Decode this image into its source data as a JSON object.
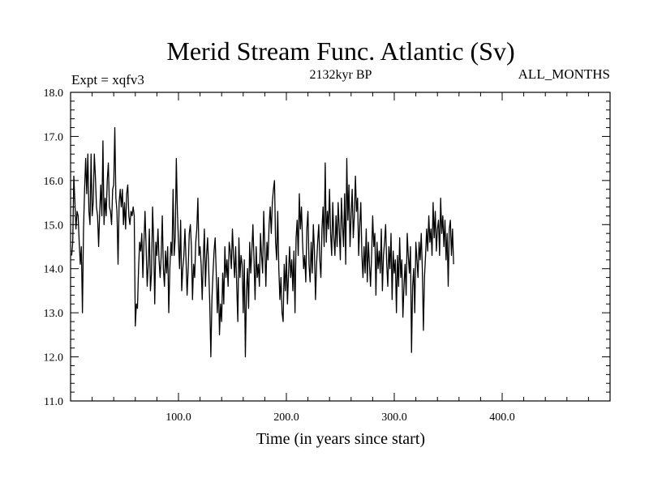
{
  "chart_data": {
    "type": "line",
    "title": "Merid Stream Func. Atlantic (Sv)",
    "subtitle_left": "Expt = xqfv3",
    "subtitle_center": "2132kyr BP",
    "subtitle_right": "ALL_MONTHS",
    "xlabel": "Time (in years since start)",
    "ylabel": "",
    "xlim": [
      0,
      500
    ],
    "ylim": [
      11.0,
      18.0
    ],
    "x_ticks": [
      100,
      200,
      300,
      400
    ],
    "x_tick_labels": [
      "100.0",
      "200.0",
      "300.0",
      "400.0"
    ],
    "y_ticks": [
      11,
      12,
      13,
      14,
      15,
      16,
      17,
      18
    ],
    "y_tick_labels": [
      "11.0",
      "12.0",
      "13.0",
      "14.0",
      "15.0",
      "16.0",
      "17.0",
      "18.0"
    ],
    "grid": false,
    "line_color": "#000000",
    "series": [
      {
        "name": "Merid Stream Func. Atlantic",
        "x_start": 1,
        "x_step": 1,
        "values": [
          14.3,
          14.6,
          16.1,
          15.5,
          14.9,
          15.3,
          15.2,
          14.6,
          14.1,
          14.5,
          13.0,
          14.9,
          15.8,
          16.5,
          15.7,
          16.6,
          15.3,
          15.0,
          16.6,
          15.2,
          15.5,
          16.6,
          16.1,
          15.4,
          15.2,
          14.5,
          15.3,
          15.9,
          15.2,
          16.9,
          15.0,
          15.6,
          15.2,
          16.0,
          16.4,
          15.4,
          15.3,
          15.0,
          15.8,
          15.9,
          17.2,
          15.6,
          15.3,
          14.1,
          15.5,
          15.8,
          15.4,
          15.8,
          15.0,
          15.5,
          14.9,
          15.7,
          15.9,
          15.2,
          15.0,
          15.3,
          15.2,
          15.4,
          15.2,
          12.7,
          13.2,
          13.1,
          14.0,
          14.6,
          14.4,
          14.8,
          13.8,
          14.6,
          15.3,
          14.5,
          13.6,
          14.1,
          14.9,
          13.5,
          13.9,
          15.4,
          14.6,
          13.2,
          14.6,
          14.3,
          14.9,
          14.2,
          13.8,
          14.3,
          15.2,
          14.0,
          13.6,
          14.4,
          13.9,
          14.5,
          13.0,
          14.0,
          14.6,
          14.3,
          15.8,
          14.3,
          14.7,
          16.5,
          15.3,
          14.6,
          14.0,
          15.1,
          13.5,
          14.0,
          14.3,
          14.9,
          14.2,
          13.4,
          14.0,
          14.8,
          15.0,
          14.5,
          13.3,
          14.1,
          13.8,
          14.6,
          14.9,
          15.6,
          14.3,
          14.5,
          14.1,
          13.3,
          14.2,
          14.9,
          13.6,
          14.3,
          14.7,
          14.0,
          13.2,
          12.0,
          13.3,
          13.9,
          14.4,
          14.7,
          13.9,
          13.0,
          13.8,
          12.5,
          13.2,
          12.8,
          13.9,
          13.2,
          14.5,
          13.8,
          14.2,
          13.6,
          14.6,
          14.4,
          14.0,
          14.9,
          14.3,
          13.8,
          14.5,
          13.6,
          12.8,
          14.7,
          13.8,
          14.3,
          14.1,
          13.0,
          14.2,
          12.0,
          13.5,
          14.0,
          13.1,
          14.6,
          13.9,
          14.4,
          15.0,
          14.2,
          13.3,
          14.5,
          13.8,
          14.1,
          13.6,
          14.8,
          14.3,
          13.9,
          15.3,
          14.5,
          13.6,
          14.6,
          14.2,
          15.0,
          15.4,
          14.8,
          15.5,
          15.8,
          16.0,
          14.6,
          14.2,
          15.3,
          14.0,
          13.3,
          13.8,
          13.0,
          12.8,
          14.1,
          13.5,
          14.3,
          13.2,
          13.9,
          14.5,
          13.8,
          14.2,
          13.5,
          14.4,
          13.0,
          14.7,
          15.1,
          14.3,
          15.7,
          14.9,
          15.4,
          14.6,
          14.0,
          14.3,
          13.7,
          14.9,
          15.3,
          14.1,
          13.7,
          14.6,
          13.9,
          15.0,
          14.4,
          13.3,
          14.1,
          14.6,
          15.0,
          14.2,
          13.8,
          14.9,
          15.4,
          14.5,
          16.4,
          14.6,
          15.3,
          14.9,
          15.8,
          14.8,
          14.3,
          15.5,
          14.7,
          14.3,
          15.2,
          14.5,
          15.5,
          14.9,
          14.2,
          15.6,
          15.0,
          14.5,
          15.7,
          14.1,
          16.5,
          15.1,
          15.9,
          14.5,
          15.2,
          15.8,
          14.7,
          15.2,
          16.1,
          15.3,
          15.6,
          14.3,
          15.0,
          15.5,
          14.3,
          13.8,
          14.5,
          13.9,
          14.9,
          13.7,
          14.6,
          14.1,
          13.6,
          14.3,
          15.2,
          14.5,
          14.8,
          13.4,
          14.6,
          14.0,
          14.4,
          13.9,
          14.9,
          13.5,
          14.3,
          14.6,
          15.0,
          14.1,
          13.6,
          14.5,
          14.0,
          14.8,
          13.3,
          14.4,
          13.9,
          14.2,
          13.0,
          14.3,
          13.6,
          14.7,
          13.8,
          14.2,
          12.9,
          13.6,
          14.1,
          13.4,
          14.8,
          14.3,
          13.9,
          14.5,
          12.1,
          13.6,
          14.0,
          13.0,
          14.6,
          14.2,
          13.8,
          14.6,
          14.2,
          14.8,
          14.0,
          12.6,
          13.8,
          14.3,
          14.9,
          14.4,
          15.2,
          14.6,
          14.9,
          14.3,
          15.5,
          14.7,
          15.3,
          14.4,
          14.9,
          15.1,
          14.3,
          15.6,
          14.8,
          15.2,
          14.5,
          15.1,
          14.2,
          14.8,
          13.6,
          14.9,
          15.1,
          14.3,
          14.9,
          14.1
        ]
      }
    ]
  }
}
